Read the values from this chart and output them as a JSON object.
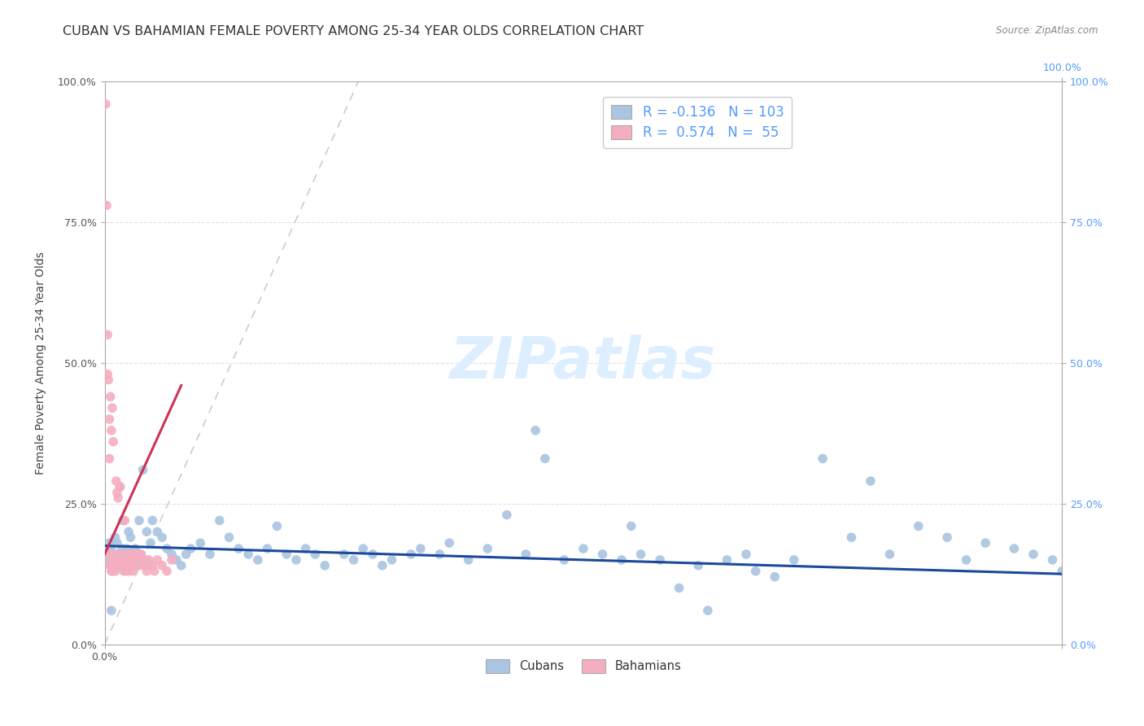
{
  "title": "CUBAN VS BAHAMIAN FEMALE POVERTY AMONG 25-34 YEAR OLDS CORRELATION CHART",
  "source": "Source: ZipAtlas.com",
  "ylabel": "Female Poverty Among 25-34 Year Olds",
  "watermark": "ZIPatlas",
  "xlim": [
    0.0,
    1.0
  ],
  "ylim": [
    0.0,
    1.0
  ],
  "ytick_values": [
    0.0,
    0.25,
    0.5,
    0.75,
    1.0
  ],
  "grid_color": "#e0e0e0",
  "background_color": "#ffffff",
  "cuban_color": "#aac4e2",
  "bahamian_color": "#f5aec0",
  "cuban_trend_color": "#1a4a99",
  "bahamian_trend_color": "#cc3355",
  "dashed_color": "#cccccc",
  "legend_r_cuban": "-0.136",
  "legend_n_cuban": "103",
  "legend_r_bahamian": "0.574",
  "legend_n_bahamian": "55",
  "right_tick_color": "#5599ff",
  "watermark_color": "#ddeeff",
  "title_fontsize": 11.5,
  "axis_label_fontsize": 10,
  "tick_label_fontsize": 9,
  "legend_fontsize": 12,
  "cuban_scatter_x": [
    0.003,
    0.005,
    0.006,
    0.007,
    0.008,
    0.009,
    0.01,
    0.011,
    0.012,
    0.013,
    0.014,
    0.015,
    0.016,
    0.017,
    0.018,
    0.019,
    0.02,
    0.021,
    0.022,
    0.023,
    0.025,
    0.026,
    0.027,
    0.028,
    0.03,
    0.032,
    0.034,
    0.036,
    0.038,
    0.04,
    0.042,
    0.044,
    0.046,
    0.048,
    0.05,
    0.055,
    0.06,
    0.065,
    0.07,
    0.075,
    0.08,
    0.085,
    0.09,
    0.1,
    0.11,
    0.12,
    0.13,
    0.14,
    0.15,
    0.16,
    0.17,
    0.18,
    0.19,
    0.2,
    0.21,
    0.22,
    0.23,
    0.25,
    0.26,
    0.27,
    0.28,
    0.29,
    0.3,
    0.32,
    0.33,
    0.35,
    0.36,
    0.38,
    0.4,
    0.42,
    0.44,
    0.45,
    0.46,
    0.48,
    0.5,
    0.52,
    0.54,
    0.55,
    0.56,
    0.58,
    0.6,
    0.62,
    0.63,
    0.65,
    0.67,
    0.68,
    0.7,
    0.72,
    0.75,
    0.78,
    0.8,
    0.82,
    0.85,
    0.88,
    0.9,
    0.92,
    0.95,
    0.97,
    0.99,
    1.0,
    0.004,
    0.007,
    0.009
  ],
  "cuban_scatter_y": [
    0.15,
    0.18,
    0.14,
    0.17,
    0.13,
    0.16,
    0.15,
    0.19,
    0.14,
    0.18,
    0.16,
    0.15,
    0.28,
    0.14,
    0.17,
    0.22,
    0.16,
    0.15,
    0.13,
    0.17,
    0.2,
    0.14,
    0.19,
    0.16,
    0.15,
    0.17,
    0.14,
    0.22,
    0.16,
    0.31,
    0.15,
    0.2,
    0.14,
    0.18,
    0.22,
    0.2,
    0.19,
    0.17,
    0.16,
    0.15,
    0.14,
    0.16,
    0.17,
    0.18,
    0.16,
    0.22,
    0.19,
    0.17,
    0.16,
    0.15,
    0.17,
    0.21,
    0.16,
    0.15,
    0.17,
    0.16,
    0.14,
    0.16,
    0.15,
    0.17,
    0.16,
    0.14,
    0.15,
    0.16,
    0.17,
    0.16,
    0.18,
    0.15,
    0.17,
    0.23,
    0.16,
    0.38,
    0.33,
    0.15,
    0.17,
    0.16,
    0.15,
    0.21,
    0.16,
    0.15,
    0.1,
    0.14,
    0.06,
    0.15,
    0.16,
    0.13,
    0.12,
    0.15,
    0.33,
    0.19,
    0.29,
    0.16,
    0.21,
    0.19,
    0.15,
    0.18,
    0.17,
    0.16,
    0.15,
    0.13,
    0.17,
    0.06,
    0.14
  ],
  "bahamian_scatter_x": [
    0.001,
    0.002,
    0.003,
    0.003,
    0.004,
    0.004,
    0.005,
    0.005,
    0.006,
    0.006,
    0.007,
    0.007,
    0.008,
    0.008,
    0.009,
    0.009,
    0.01,
    0.01,
    0.011,
    0.012,
    0.013,
    0.014,
    0.015,
    0.016,
    0.017,
    0.018,
    0.019,
    0.02,
    0.021,
    0.022,
    0.023,
    0.024,
    0.025,
    0.026,
    0.027,
    0.028,
    0.029,
    0.03,
    0.032,
    0.034,
    0.036,
    0.038,
    0.04,
    0.042,
    0.044,
    0.046,
    0.05,
    0.052,
    0.055,
    0.06,
    0.065,
    0.07,
    0.003,
    0.005,
    0.008
  ],
  "bahamian_scatter_y": [
    0.96,
    0.78,
    0.55,
    0.48,
    0.47,
    0.16,
    0.4,
    0.14,
    0.44,
    0.16,
    0.38,
    0.13,
    0.42,
    0.14,
    0.36,
    0.16,
    0.15,
    0.14,
    0.13,
    0.29,
    0.27,
    0.26,
    0.15,
    0.28,
    0.14,
    0.16,
    0.15,
    0.13,
    0.22,
    0.15,
    0.14,
    0.16,
    0.13,
    0.15,
    0.14,
    0.16,
    0.13,
    0.14,
    0.16,
    0.15,
    0.14,
    0.16,
    0.15,
    0.14,
    0.13,
    0.15,
    0.14,
    0.13,
    0.15,
    0.14,
    0.13,
    0.15,
    0.16,
    0.33,
    0.14
  ],
  "cuban_trend_x": [
    0.0,
    1.0
  ],
  "cuban_trend_y": [
    0.175,
    0.125
  ],
  "bahamian_trend_x": [
    0.0,
    0.08
  ],
  "bahamian_trend_y": [
    0.16,
    0.46
  ],
  "dashed_line_x": [
    0.0,
    0.265
  ],
  "dashed_line_y": [
    0.0,
    1.0
  ]
}
